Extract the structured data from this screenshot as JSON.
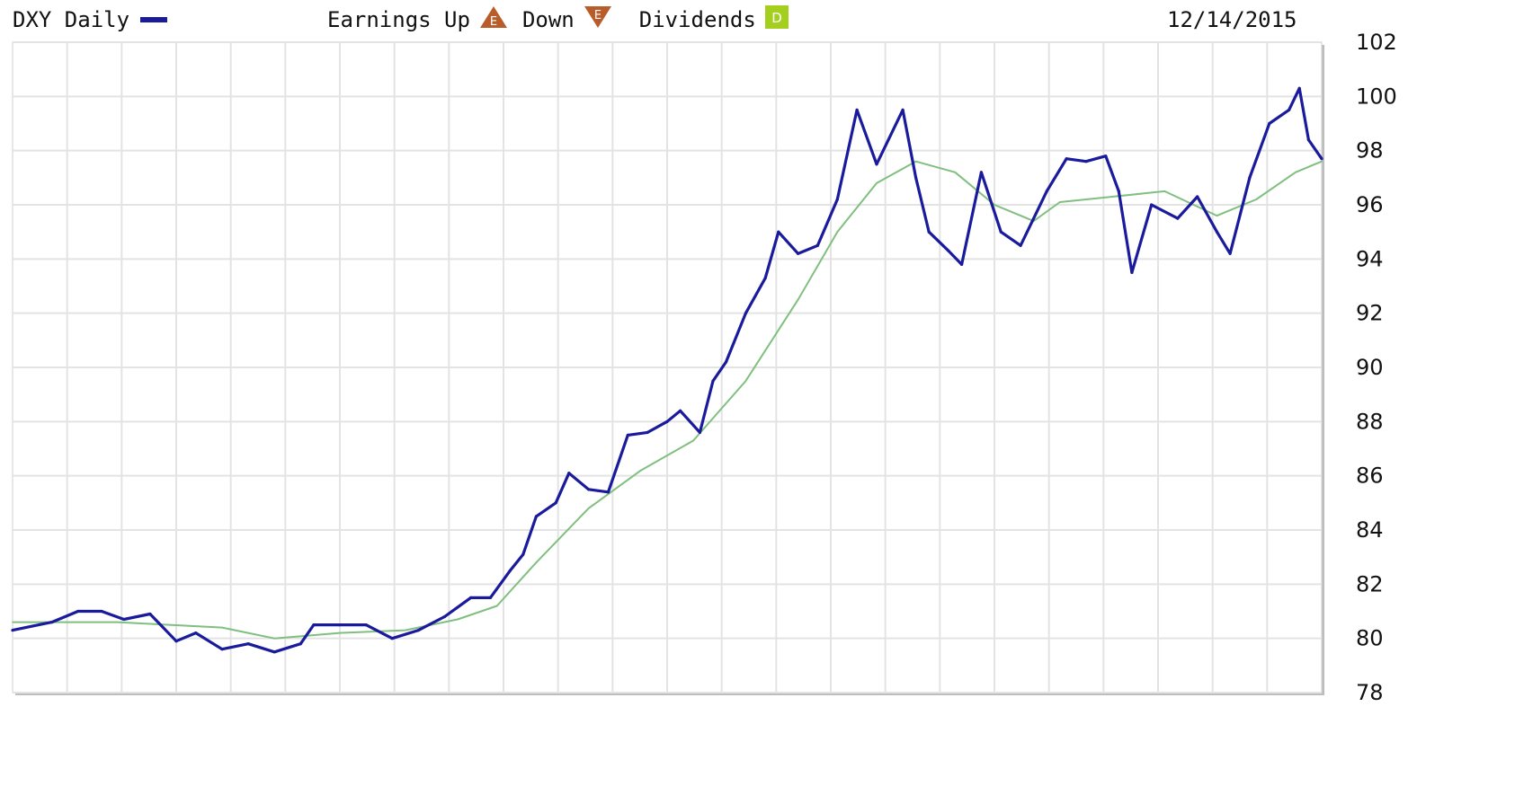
{
  "legend": {
    "symbol_label": "DXY Daily",
    "earnings_label": "Earnings Up",
    "earnings_down_label": "Down",
    "dividends_label": "Dividends",
    "date_label": "12/14/2015",
    "earnings_up_glyph": "E",
    "earnings_down_glyph": "E",
    "dividends_glyph": "D"
  },
  "colors": {
    "price_line": "#1a1a9c",
    "moving_average": "#7fbf7f",
    "grid": "#e3e3e3",
    "earnings_marker": "#b85c2a",
    "dividends_marker": "#a4cf1e"
  },
  "chart_data": {
    "type": "line",
    "title": "",
    "xlabel": "",
    "ylabel": "",
    "ylim": [
      78,
      102
    ],
    "yticks": [
      102,
      100,
      98,
      96,
      94,
      92,
      90,
      88,
      86,
      84,
      82,
      80,
      78
    ],
    "grid": true,
    "x_range": [
      0,
      1
    ],
    "series": [
      {
        "name": "DXY Daily",
        "points": [
          [
            0.0,
            80.3
          ],
          [
            0.03,
            80.6
          ],
          [
            0.05,
            81.0
          ],
          [
            0.068,
            81.0
          ],
          [
            0.085,
            80.7
          ],
          [
            0.105,
            80.9
          ],
          [
            0.125,
            79.9
          ],
          [
            0.14,
            80.2
          ],
          [
            0.16,
            79.6
          ],
          [
            0.18,
            79.8
          ],
          [
            0.2,
            79.5
          ],
          [
            0.22,
            79.8
          ],
          [
            0.23,
            80.5
          ],
          [
            0.25,
            80.5
          ],
          [
            0.27,
            80.5
          ],
          [
            0.29,
            80.0
          ],
          [
            0.31,
            80.3
          ],
          [
            0.33,
            80.8
          ],
          [
            0.35,
            81.5
          ],
          [
            0.365,
            81.5
          ],
          [
            0.38,
            82.5
          ],
          [
            0.39,
            83.1
          ],
          [
            0.4,
            84.5
          ],
          [
            0.415,
            85.0
          ],
          [
            0.425,
            86.1
          ],
          [
            0.44,
            85.5
          ],
          [
            0.455,
            85.4
          ],
          [
            0.47,
            87.5
          ],
          [
            0.485,
            87.6
          ],
          [
            0.5,
            88.0
          ],
          [
            0.51,
            88.4
          ],
          [
            0.525,
            87.6
          ],
          [
            0.535,
            89.5
          ],
          [
            0.545,
            90.2
          ],
          [
            0.56,
            92.0
          ],
          [
            0.575,
            93.3
          ],
          [
            0.585,
            95.0
          ],
          [
            0.6,
            94.2
          ],
          [
            0.615,
            94.5
          ],
          [
            0.63,
            96.2
          ],
          [
            0.645,
            99.5
          ],
          [
            0.66,
            97.5
          ],
          [
            0.68,
            99.5
          ],
          [
            0.69,
            97.0
          ],
          [
            0.7,
            95.0
          ],
          [
            0.715,
            94.3
          ],
          [
            0.725,
            93.8
          ],
          [
            0.74,
            97.2
          ],
          [
            0.755,
            95.0
          ],
          [
            0.77,
            94.5
          ],
          [
            0.79,
            96.5
          ],
          [
            0.805,
            97.7
          ],
          [
            0.82,
            97.6
          ],
          [
            0.835,
            97.8
          ],
          [
            0.845,
            96.5
          ],
          [
            0.855,
            93.5
          ],
          [
            0.87,
            96.0
          ],
          [
            0.89,
            95.5
          ],
          [
            0.905,
            96.3
          ],
          [
            0.92,
            95.0
          ],
          [
            0.93,
            94.2
          ],
          [
            0.945,
            97.0
          ],
          [
            0.96,
            99.0
          ],
          [
            0.975,
            99.5
          ],
          [
            0.983,
            100.3
          ],
          [
            0.99,
            98.4
          ],
          [
            1.0,
            97.7
          ]
        ]
      },
      {
        "points": [
          [
            0.0,
            80.6
          ],
          [
            0.08,
            80.6
          ],
          [
            0.16,
            80.4
          ],
          [
            0.2,
            80.0
          ],
          [
            0.25,
            80.2
          ],
          [
            0.3,
            80.3
          ],
          [
            0.34,
            80.7
          ],
          [
            0.37,
            81.2
          ],
          [
            0.4,
            82.8
          ],
          [
            0.44,
            84.8
          ],
          [
            0.48,
            86.2
          ],
          [
            0.52,
            87.3
          ],
          [
            0.56,
            89.5
          ],
          [
            0.6,
            92.5
          ],
          [
            0.63,
            95.0
          ],
          [
            0.66,
            96.8
          ],
          [
            0.69,
            97.6
          ],
          [
            0.72,
            97.2
          ],
          [
            0.75,
            96.0
          ],
          [
            0.78,
            95.4
          ],
          [
            0.8,
            96.1
          ],
          [
            0.84,
            96.3
          ],
          [
            0.88,
            96.5
          ],
          [
            0.92,
            95.6
          ],
          [
            0.95,
            96.2
          ],
          [
            0.98,
            97.2
          ],
          [
            1.0,
            97.6
          ]
        ]
      }
    ]
  }
}
